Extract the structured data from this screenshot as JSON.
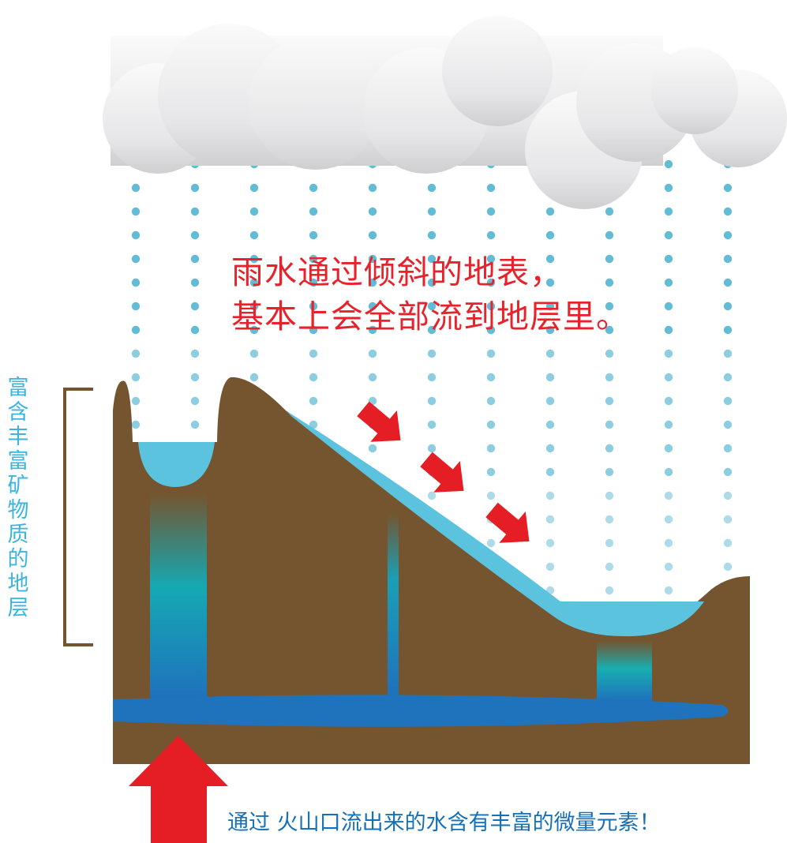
{
  "headline": {
    "line1": "雨水通过倾斜的地表，",
    "line2": "基本上会全部流到地层里。"
  },
  "strata_label": "富含丰富矿物质的地层",
  "bottom_caption": "通过 火山口流出来的水含有丰富的微量元素！",
  "icons": {
    "cloud": "cloud-icon",
    "rain": "raindrop-icon",
    "flow_arrow": "arrow-down-right-icon",
    "up_arrow": "arrow-up-icon"
  },
  "colors": {
    "earth": "#745530",
    "surface_water": "#5cc3df",
    "groundwater": "#1f73bd",
    "rain": "#5bb8d4",
    "arrow": "#e51d24",
    "bracket": "#745530",
    "cloud": "#e8e8ea",
    "caption_red": "#e8222a",
    "caption_blue": "#1570b8",
    "label_blue": "#3bb4e0"
  }
}
